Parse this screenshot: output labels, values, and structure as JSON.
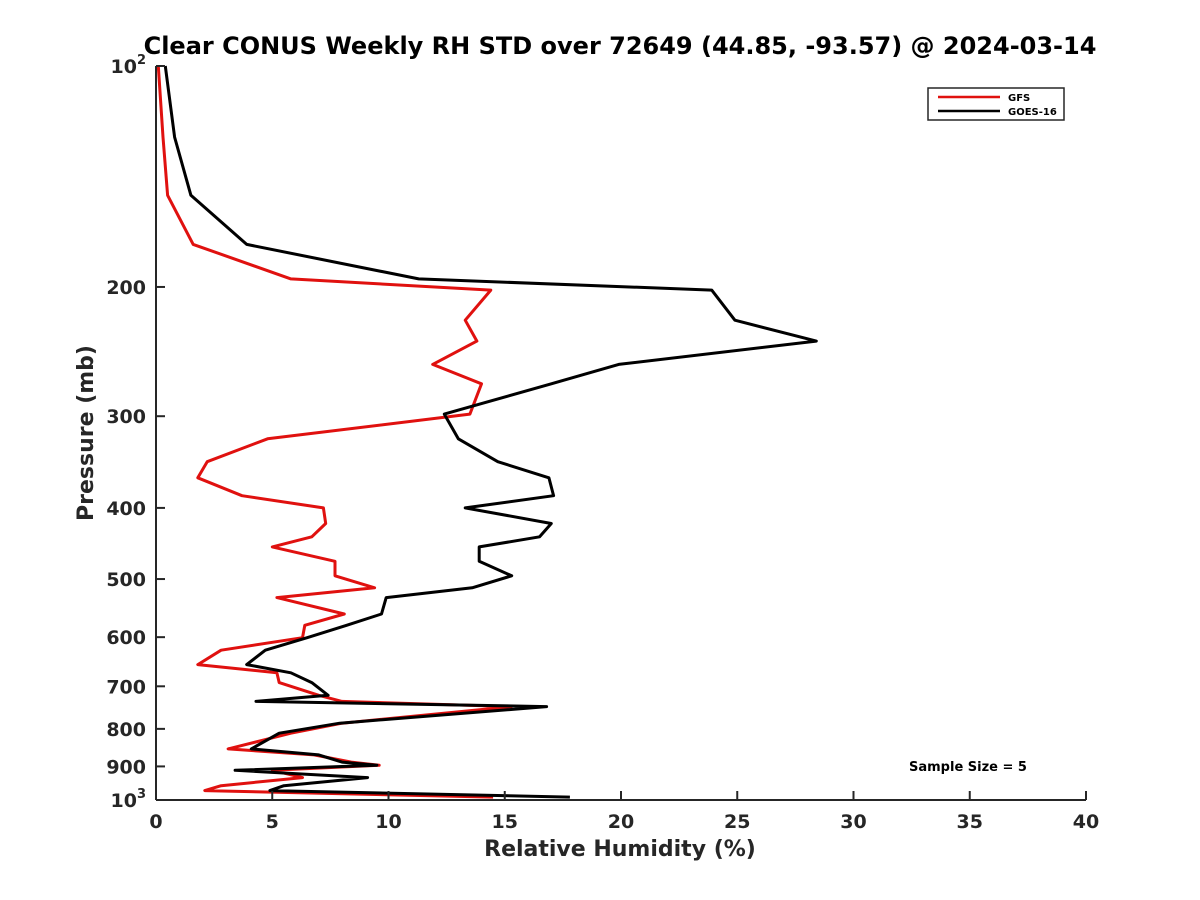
{
  "chart_data": {
    "type": "line",
    "title": "Clear CONUS Weekly RH STD over 72649 (44.85, -93.57) @ 2024-03-14",
    "xlabel": "Relative Humidity (%)",
    "ylabel": "Pressure (mb)",
    "xlim": [
      0,
      40
    ],
    "ylim": [
      100,
      1000
    ],
    "yscale": "log",
    "y_reversed": true,
    "x_ticks": [
      0,
      5,
      10,
      15,
      20,
      25,
      30,
      35,
      40
    ],
    "y_ticks": [
      {
        "value": 100,
        "base": "10",
        "exp": "2"
      },
      {
        "value": 200,
        "label": "200"
      },
      {
        "value": 300,
        "label": "300"
      },
      {
        "value": 400,
        "label": "400"
      },
      {
        "value": 500,
        "label": "500"
      },
      {
        "value": 600,
        "label": "600"
      },
      {
        "value": 700,
        "label": "700"
      },
      {
        "value": 800,
        "label": "800"
      },
      {
        "value": 900,
        "label": "900"
      },
      {
        "value": 1000,
        "base": "10",
        "exp": "3"
      }
    ],
    "grid": false,
    "legend_position": "top-right",
    "annotation": "Sample Size = 5",
    "series": [
      {
        "name": "GFS",
        "color": "#e0110f",
        "points": [
          [
            0.1,
            100
          ],
          [
            0.3,
            125
          ],
          [
            0.5,
            150
          ],
          [
            1.6,
            175
          ],
          [
            5.8,
            195
          ],
          [
            14.4,
            202
          ],
          [
            13.3,
            222
          ],
          [
            13.8,
            237
          ],
          [
            11.9,
            255
          ],
          [
            14.0,
            271
          ],
          [
            13.5,
            298
          ],
          [
            4.8,
            322
          ],
          [
            2.2,
            346
          ],
          [
            1.8,
            364
          ],
          [
            3.7,
            385
          ],
          [
            7.2,
            400
          ],
          [
            7.3,
            420
          ],
          [
            6.7,
            438
          ],
          [
            5.0,
            452
          ],
          [
            7.7,
            473
          ],
          [
            7.7,
            495
          ],
          [
            9.4,
            514
          ],
          [
            5.2,
            530
          ],
          [
            8.1,
            558
          ],
          [
            6.4,
            578
          ],
          [
            6.3,
            601
          ],
          [
            2.8,
            625
          ],
          [
            1.8,
            654
          ],
          [
            5.2,
            671
          ],
          [
            5.3,
            692
          ],
          [
            7.0,
            720
          ],
          [
            8.0,
            734
          ],
          [
            15.3,
            746
          ],
          [
            8.0,
            786
          ],
          [
            5.8,
            811
          ],
          [
            3.1,
            852
          ],
          [
            6.8,
            868
          ],
          [
            8.4,
            888
          ],
          [
            9.6,
            897
          ],
          [
            5.0,
            911
          ],
          [
            6.3,
            932
          ],
          [
            2.8,
            956
          ],
          [
            2.1,
            971
          ],
          [
            14.5,
            991
          ]
        ]
      },
      {
        "name": "GOES-16",
        "color": "#000000",
        "points": [
          [
            0.4,
            100
          ],
          [
            0.8,
            125
          ],
          [
            1.5,
            150
          ],
          [
            3.9,
            175
          ],
          [
            11.3,
            195
          ],
          [
            23.9,
            202
          ],
          [
            24.9,
            222
          ],
          [
            28.4,
            237
          ],
          [
            19.9,
            255
          ],
          [
            17.0,
            271
          ],
          [
            12.4,
            298
          ],
          [
            13.0,
            322
          ],
          [
            14.7,
            346
          ],
          [
            16.9,
            364
          ],
          [
            17.1,
            385
          ],
          [
            13.3,
            400
          ],
          [
            17.0,
            420
          ],
          [
            16.5,
            438
          ],
          [
            13.9,
            452
          ],
          [
            13.9,
            473
          ],
          [
            15.3,
            495
          ],
          [
            13.6,
            514
          ],
          [
            9.9,
            530
          ],
          [
            9.7,
            558
          ],
          [
            8.2,
            578
          ],
          [
            6.5,
            601
          ],
          [
            4.7,
            625
          ],
          [
            3.9,
            654
          ],
          [
            5.8,
            671
          ],
          [
            6.7,
            692
          ],
          [
            7.4,
            720
          ],
          [
            4.3,
            734
          ],
          [
            16.8,
            746
          ],
          [
            7.9,
            786
          ],
          [
            5.3,
            811
          ],
          [
            4.1,
            852
          ],
          [
            7.0,
            868
          ],
          [
            8.0,
            888
          ],
          [
            9.5,
            897
          ],
          [
            3.4,
            911
          ],
          [
            9.1,
            932
          ],
          [
            5.5,
            956
          ],
          [
            4.9,
            971
          ],
          [
            17.8,
            991
          ]
        ]
      }
    ]
  }
}
